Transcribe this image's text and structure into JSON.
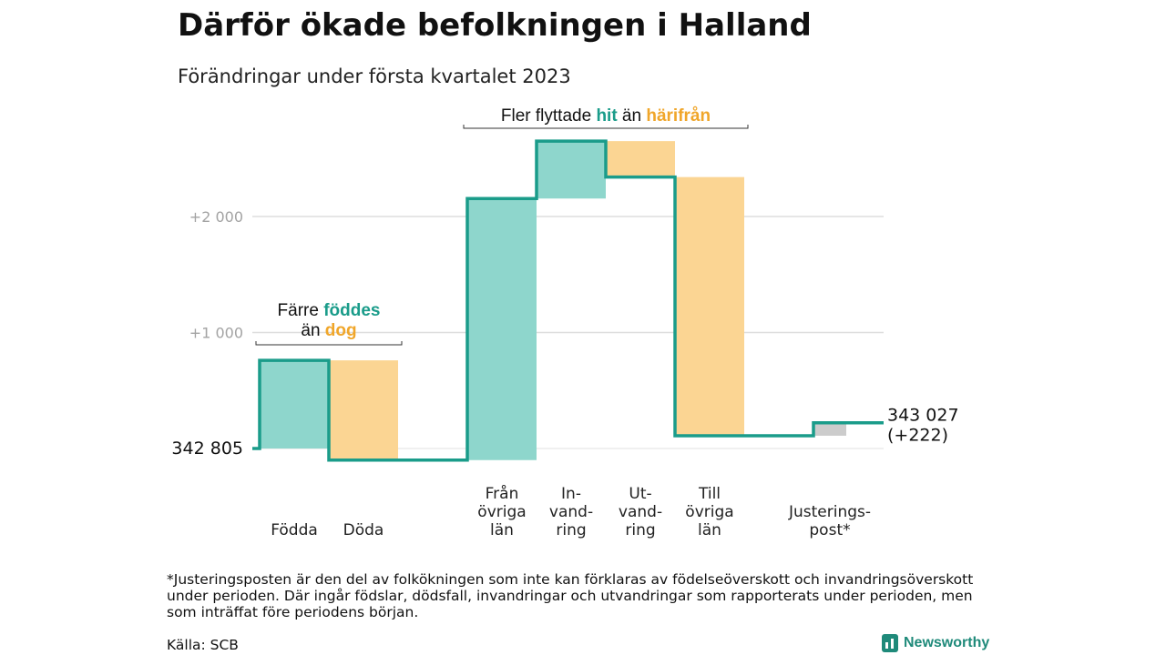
{
  "title": "Därför ökade befolkningen i Halland",
  "subtitle": "Förändringar under första kvartalet 2023",
  "colors": {
    "inflow": "#8ed6cc",
    "outflow": "#fbd593",
    "line": "#1a9c8a",
    "adjust": "#cccccc",
    "grid": "#dedede",
    "highlight_green": "#1a9c8a",
    "highlight_orange": "#f0a62a"
  },
  "chart_data": {
    "type": "waterfall",
    "start": {
      "label": "342 805",
      "value": 0
    },
    "end": {
      "label": "343 027",
      "sublabel": "(+222)",
      "value": 222
    },
    "steps": [
      {
        "category": "Födda",
        "lines": [
          "Födda"
        ],
        "from": 0,
        "to": 760,
        "kind": "inflow"
      },
      {
        "category": "Döda",
        "lines": [
          "Döda"
        ],
        "from": 760,
        "to": -100,
        "kind": "outflow"
      },
      {
        "category": "Från övriga län",
        "lines": [
          "Från",
          "övriga",
          "län"
        ],
        "from": -100,
        "to": 2155,
        "kind": "inflow"
      },
      {
        "category": "Invandring",
        "lines": [
          "In-",
          "vand-",
          "ring"
        ],
        "from": 2155,
        "to": 2650,
        "kind": "inflow"
      },
      {
        "category": "Utvandring",
        "lines": [
          "Ut-",
          "vand-",
          "ring"
        ],
        "from": 2650,
        "to": 2340,
        "kind": "outflow"
      },
      {
        "category": "Till övriga län",
        "lines": [
          "Till",
          "övriga",
          "län"
        ],
        "from": 2340,
        "to": 110,
        "kind": "outflow"
      },
      {
        "category": "Justeringspost*",
        "lines": [
          "Justerings-",
          "post*"
        ],
        "from": 110,
        "to": 222,
        "kind": "adjust"
      }
    ],
    "yticks": [
      {
        "value": 2000,
        "label": "+2 000"
      },
      {
        "value": 1000,
        "label": "+1 000"
      }
    ],
    "annotations": [
      {
        "lines": [
          [
            {
              "t": "Färre ",
              "c": ""
            },
            {
              "t": "föddes",
              "c": "hl-green"
            }
          ],
          [
            {
              "t": "än ",
              "c": ""
            },
            {
              "t": "dog",
              "c": "hl-orange"
            }
          ]
        ]
      },
      {
        "lines": [
          [
            {
              "t": "Fler flyttade ",
              "c": ""
            },
            {
              "t": "hit",
              "c": "hl-green"
            },
            {
              "t": " än ",
              "c": ""
            },
            {
              "t": "härifrån",
              "c": "hl-orange"
            }
          ]
        ]
      }
    ]
  },
  "footnote": "*Justeringsposten är den del av folkökningen som inte kan förklaras av födelseöverskott och invandringsöverskott under perioden. Där ingår födslar, dödsfall, invandringar och utvandringar som rapporterats under perioden, men som inträffat före periodens början.",
  "source": "Källa: SCB",
  "brand": {
    "name": "Newsworthy",
    "icon": "bar-chart-icon"
  }
}
